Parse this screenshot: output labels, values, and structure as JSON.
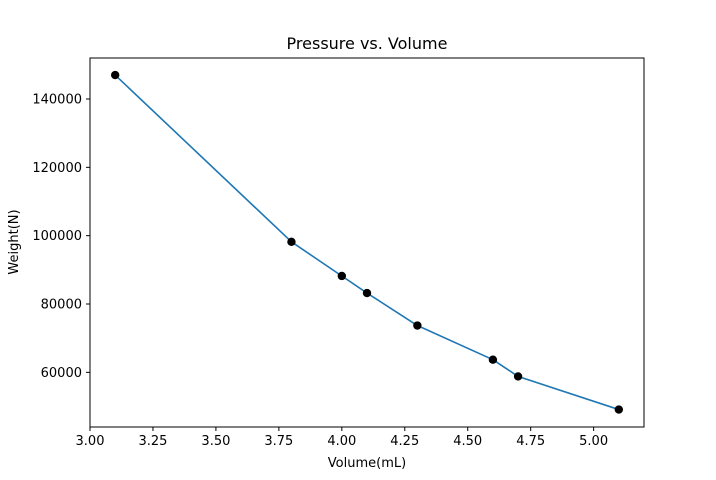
{
  "chart_data": {
    "type": "line",
    "title": "Pressure vs. Volume",
    "xlabel": "Volume(mL)",
    "ylabel": "Weight(N)",
    "xlim": [
      3.0,
      5.2
    ],
    "ylim": [
      44000,
      152000
    ],
    "x_ticks": [
      3.0,
      3.25,
      3.5,
      3.75,
      4.0,
      4.25,
      4.5,
      4.75,
      5.0
    ],
    "x_tick_labels": [
      "3.00",
      "3.25",
      "3.50",
      "3.75",
      "4.00",
      "4.25",
      "4.50",
      "4.75",
      "5.00"
    ],
    "y_ticks": [
      60000,
      80000,
      100000,
      120000,
      140000
    ],
    "y_tick_labels": [
      "60000",
      "80000",
      "100000",
      "120000",
      "140000"
    ],
    "grid": false,
    "series": [
      {
        "x": [
          3.1,
          3.8,
          4.0,
          4.1,
          4.3,
          4.6,
          4.7,
          5.1
        ],
        "y": [
          147000,
          98200,
          88200,
          83200,
          73700,
          63700,
          58800,
          49100
        ],
        "line_color": "#1f77b4",
        "marker_color": "#000000",
        "marker": "circle"
      }
    ]
  }
}
